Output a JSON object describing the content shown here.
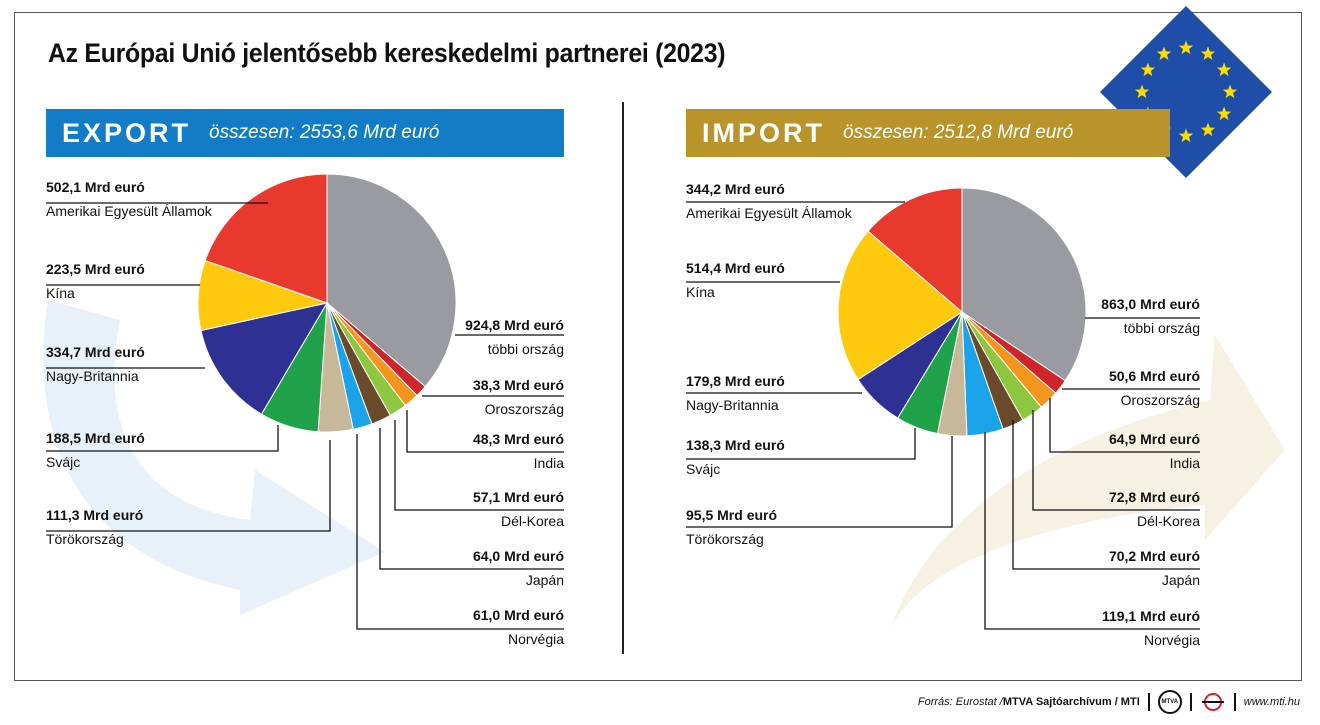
{
  "title": "Az Európai Unió jelentősebb kereskedelmi partnerei (2023)",
  "footer": {
    "source": "Forrás: Eurostat / ",
    "credit": "MTVA Sajtóarchívum / MTI",
    "logo1": "MTVA",
    "website": "www.mti.hu"
  },
  "colors": {
    "export": "#137cc6",
    "import": "#b8942a",
    "eu_flag": "#1e4ea8",
    "eu_star": "#ffdd00"
  },
  "chart_data": [
    {
      "type": "pie",
      "title": "EXPORT",
      "subtitle": "összesen: 2553,6 Mrd euró",
      "unit": "Mrd euró",
      "slices": [
        {
          "label": "többi ország",
          "value": 924.8,
          "display": "924,8 Mrd euró",
          "color": "#9a9ba0"
        },
        {
          "label": "Oroszország",
          "value": 38.3,
          "display": "38,3 Mrd euró",
          "color": "#d0242b"
        },
        {
          "label": "India",
          "value": 48.3,
          "display": "48,3 Mrd euró",
          "color": "#f4951e"
        },
        {
          "label": "Dél-Korea",
          "value": 57.1,
          "display": "57,1 Mrd euró",
          "color": "#8dc63f"
        },
        {
          "label": "Japán",
          "value": 64.0,
          "display": "64,0 Mrd euró",
          "color": "#6b4a2b"
        },
        {
          "label": "Norvégia",
          "value": 61.0,
          "display": "61,0 Mrd euró",
          "color": "#1aa3e8"
        },
        {
          "label": "Törökország",
          "value": 111.3,
          "display": "111,3 Mrd euró",
          "color": "#c8b89a"
        },
        {
          "label": "Svájc",
          "value": 188.5,
          "display": "188,5 Mrd euró",
          "color": "#1fa24a"
        },
        {
          "label": "Nagy-Britannia",
          "value": 334.7,
          "display": "334,7 Mrd euró",
          "color": "#2e3192"
        },
        {
          "label": "Kína",
          "value": 223.5,
          "display": "223,5 Mrd euró",
          "color": "#ffc90e"
        },
        {
          "label": "Amerikai Egyesült Államok",
          "value": 502.1,
          "display": "502,1 Mrd euró",
          "color": "#e8392f"
        }
      ]
    },
    {
      "type": "pie",
      "title": "IMPORT",
      "subtitle": "összesen: 2512,8 Mrd euró",
      "unit": "Mrd euró",
      "slices": [
        {
          "label": "többi ország",
          "value": 863.0,
          "display": "863,0 Mrd euró",
          "color": "#9a9ba0"
        },
        {
          "label": "Oroszország",
          "value": 50.6,
          "display": "50,6 Mrd euró",
          "color": "#d0242b"
        },
        {
          "label": "India",
          "value": 64.9,
          "display": "64,9 Mrd euró",
          "color": "#f4951e"
        },
        {
          "label": "Dél-Korea",
          "value": 72.8,
          "display": "72,8 Mrd euró",
          "color": "#8dc63f"
        },
        {
          "label": "Japán",
          "value": 70.2,
          "display": "70,2 Mrd euró",
          "color": "#6b4a2b"
        },
        {
          "label": "Norvégia",
          "value": 119.1,
          "display": "119,1 Mrd euró",
          "color": "#1aa3e8"
        },
        {
          "label": "Törökország",
          "value": 95.5,
          "display": "95,5 Mrd euró",
          "color": "#c8b89a"
        },
        {
          "label": "Svájc",
          "value": 138.3,
          "display": "138,3 Mrd euró",
          "color": "#1fa24a"
        },
        {
          "label": "Nagy-Britannia",
          "value": 179.8,
          "display": "179,8 Mrd euró",
          "color": "#2e3192"
        },
        {
          "label": "Kína",
          "value": 514.4,
          "display": "514,4 Mrd euró",
          "color": "#ffc90e"
        },
        {
          "label": "Amerikai Egyesült Államok",
          "value": 344.2,
          "display": "344,2 Mrd euró",
          "color": "#e8392f"
        }
      ]
    }
  ]
}
